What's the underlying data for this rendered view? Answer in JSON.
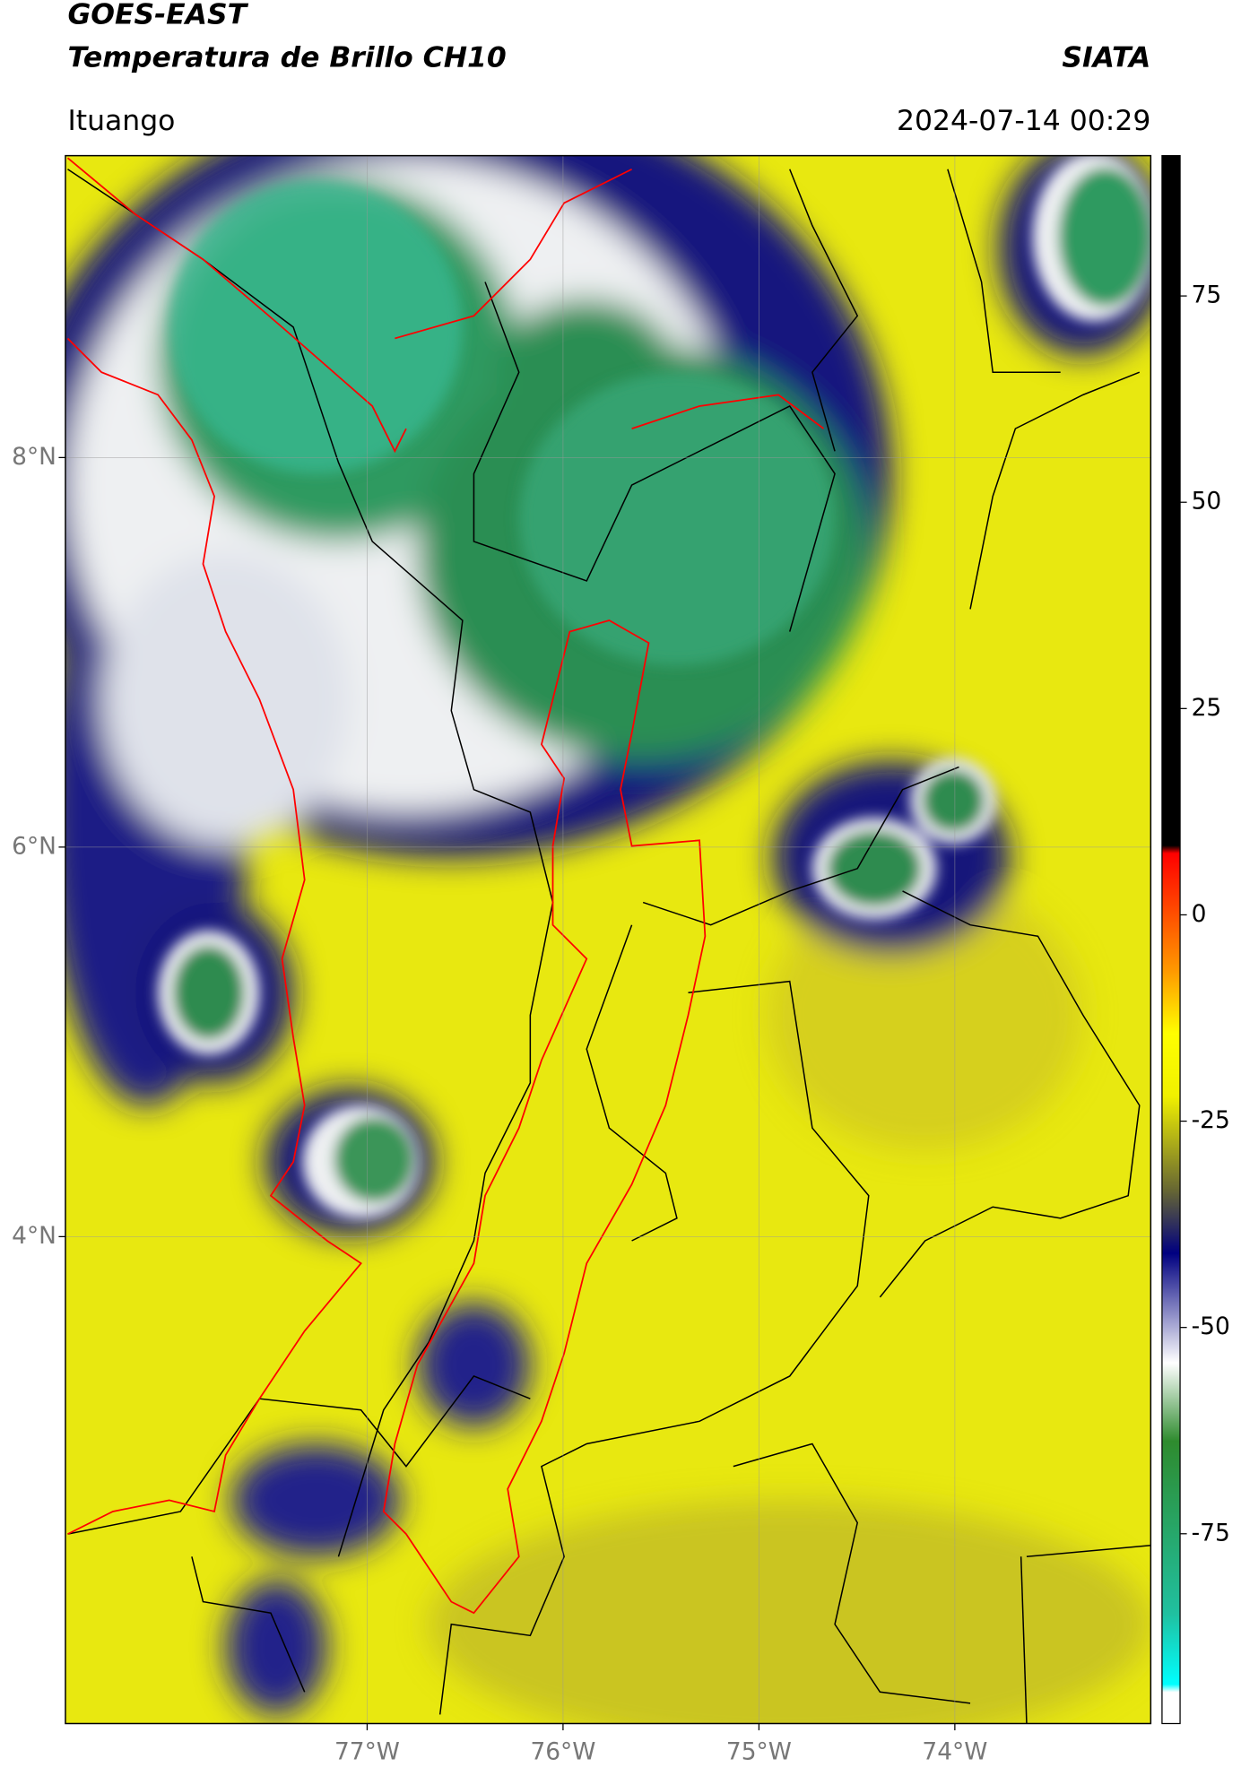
{
  "chart_data": {
    "type": "map",
    "title": "GOES-EAST",
    "subtitle": "Temperatura de Brillo CH10",
    "credit": "SIATA",
    "location": "Ituango",
    "timestamp": "2024-07-14 00:29",
    "xlim": [
      -78.54,
      -73.0
    ],
    "ylim": [
      1.5,
      9.55
    ],
    "xticks": [
      {
        "value": -77,
        "label": "77°W"
      },
      {
        "value": -76,
        "label": "76°W"
      },
      {
        "value": -75,
        "label": "75°W"
      },
      {
        "value": -74,
        "label": "74°W"
      }
    ],
    "yticks": [
      {
        "value": 8,
        "label": "8°N"
      },
      {
        "value": 6,
        "label": "6°N"
      },
      {
        "value": 4,
        "label": "4°N"
      }
    ],
    "colorbar": {
      "clim": [
        -98,
        92
      ],
      "ticks": [
        75,
        50,
        25,
        0,
        -25,
        -50,
        -75
      ]
    },
    "grid": true
  }
}
